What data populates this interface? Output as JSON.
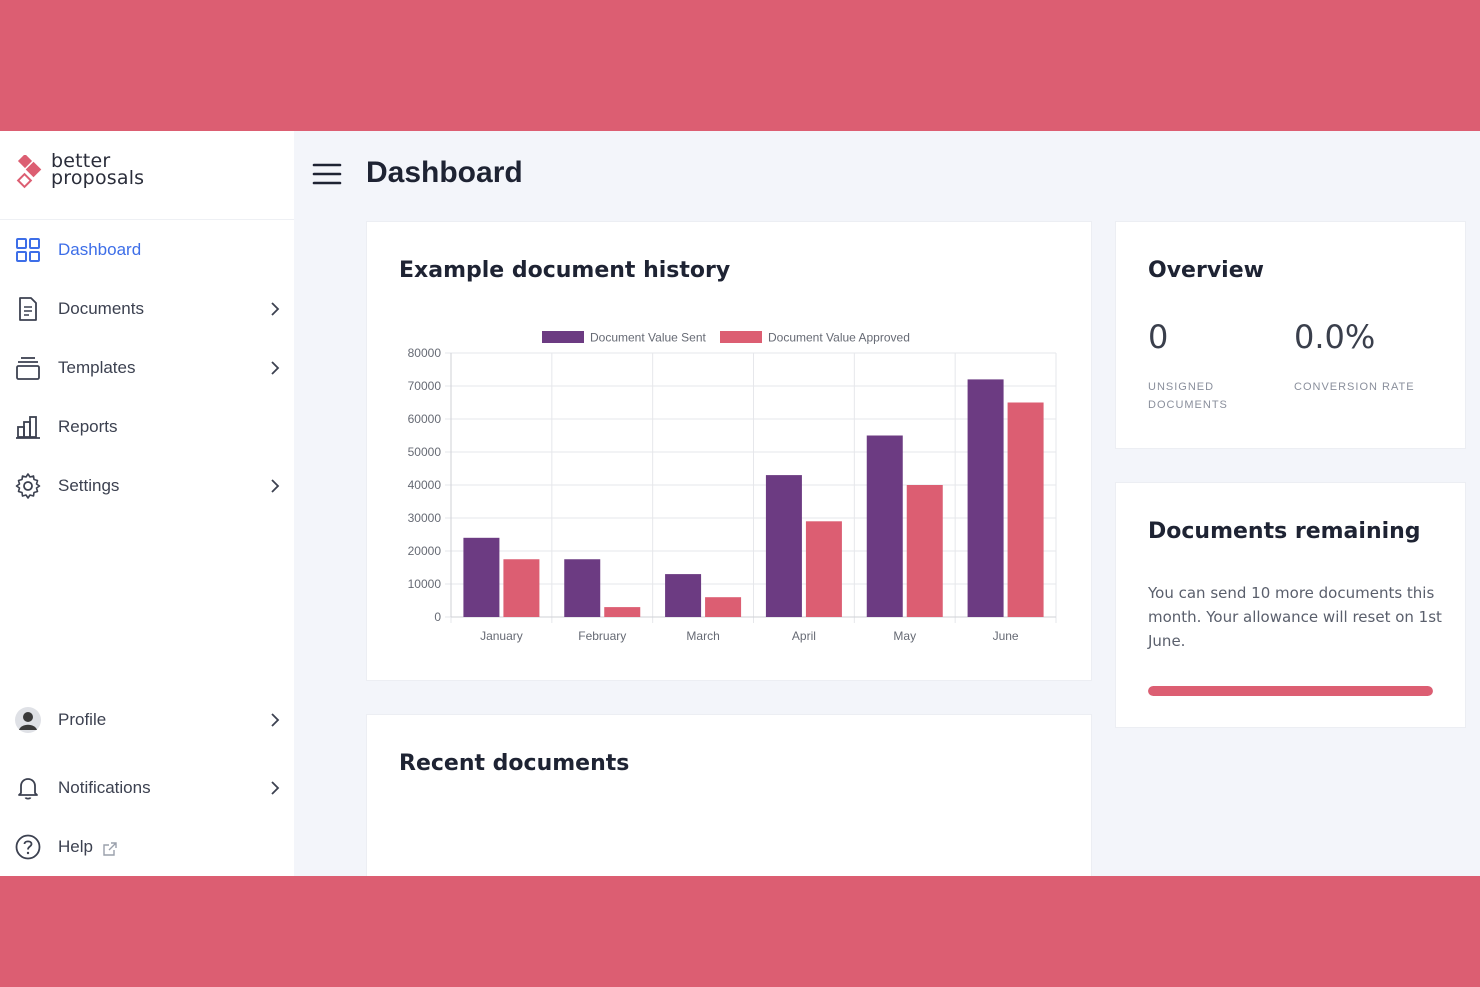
{
  "brand": {
    "line1": "better",
    "line2": "proposals",
    "accent_color": "#dc5e72"
  },
  "sidebar": {
    "items": [
      {
        "label": "Dashboard",
        "icon": "grid-icon",
        "active": true,
        "chevron": false
      },
      {
        "label": "Documents",
        "icon": "document-icon",
        "active": false,
        "chevron": true
      },
      {
        "label": "Templates",
        "icon": "templates-icon",
        "active": false,
        "chevron": true
      },
      {
        "label": "Reports",
        "icon": "bar-chart-icon",
        "active": false,
        "chevron": false
      },
      {
        "label": "Settings",
        "icon": "gear-icon",
        "active": false,
        "chevron": true
      }
    ],
    "bottom_items": [
      {
        "label": "Profile",
        "icon": "avatar-icon",
        "chevron": true
      },
      {
        "label": "Notifications",
        "icon": "bell-icon",
        "chevron": true
      },
      {
        "label": "Help",
        "icon": "help-icon",
        "external": true
      }
    ]
  },
  "header": {
    "title": "Dashboard",
    "menu_icon": "hamburger-icon"
  },
  "history_card": {
    "title": "Example document history"
  },
  "chart_data": {
    "type": "bar",
    "categories": [
      "January",
      "February",
      "March",
      "April",
      "May",
      "June"
    ],
    "series": [
      {
        "name": "Document Value Sent",
        "color": "#6c3b82",
        "values": [
          24000,
          17500,
          13000,
          43000,
          55000,
          72000
        ]
      },
      {
        "name": "Document Value Approved",
        "color": "#dc5e72",
        "values": [
          17500,
          3000,
          6000,
          29000,
          40000,
          65000
        ]
      }
    ],
    "y_ticks": [
      "0",
      "10000",
      "20000",
      "30000",
      "40000",
      "50000",
      "60000",
      "70000",
      "80000"
    ],
    "ylim": [
      0,
      80000
    ],
    "grid": true,
    "legend": "top"
  },
  "overview": {
    "title": "Overview",
    "stats": [
      {
        "value": "0",
        "label_line1": "UNSIGNED",
        "label_line2": "DOCUMENTS"
      },
      {
        "value": "0.0%",
        "label_line1": "CONVERSION RATE",
        "label_line2": ""
      }
    ]
  },
  "remaining": {
    "title": "Documents remaining",
    "text": "You can send 10 more documents this month. Your allowance will reset on 1st June.",
    "progress": 1.0
  },
  "recent": {
    "title": "Recent documents"
  }
}
